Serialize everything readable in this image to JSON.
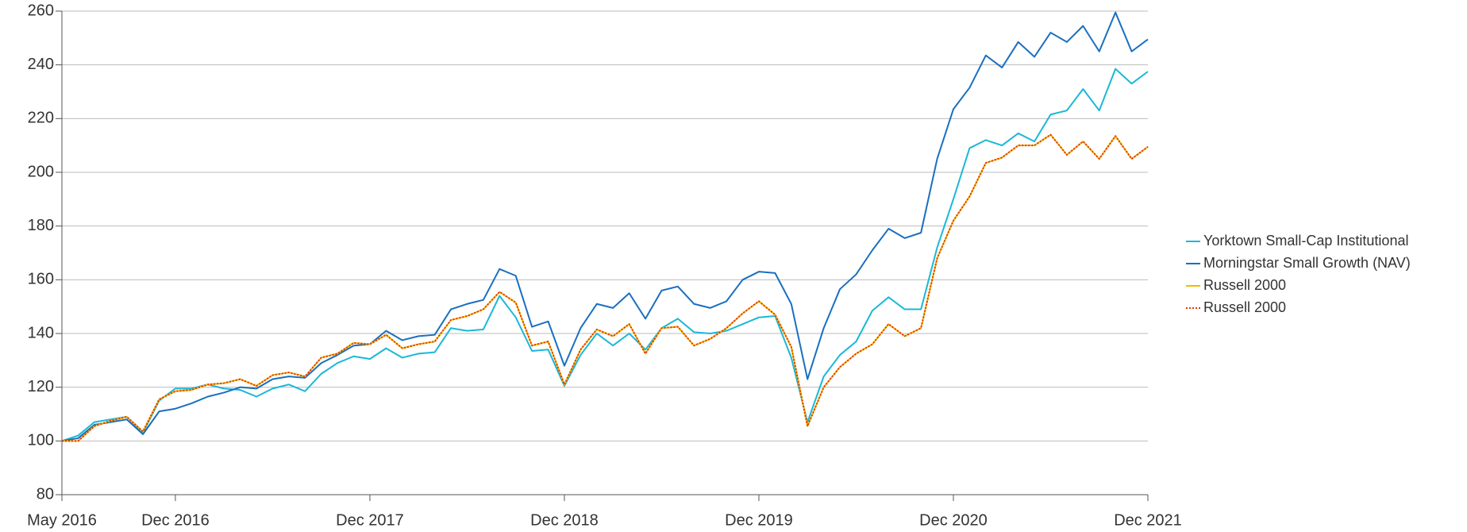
{
  "chart_data": {
    "type": "line",
    "categories": [
      "May 2016",
      null,
      null,
      null,
      null,
      null,
      null,
      "Dec 2016",
      null,
      null,
      null,
      null,
      null,
      null,
      null,
      null,
      null,
      null,
      null,
      "Dec 2017",
      null,
      null,
      null,
      null,
      null,
      null,
      null,
      null,
      null,
      null,
      null,
      "Dec 2018",
      null,
      null,
      null,
      null,
      null,
      null,
      null,
      null,
      null,
      null,
      null,
      "Dec 2019",
      null,
      null,
      null,
      null,
      null,
      null,
      null,
      null,
      null,
      null,
      null,
      "Dec 2020",
      null,
      null,
      null,
      null,
      null,
      null,
      null,
      null,
      null,
      null,
      null,
      "Dec 2021"
    ],
    "series": [
      {
        "name": "Yorktown Small-Cap Institutional",
        "color": "#1ab8d8",
        "style": "solid",
        "values": [
          100,
          102,
          107,
          108,
          109,
          103,
          115,
          119.5,
          119.5,
          121,
          119.5,
          119,
          116.5,
          119.5,
          121,
          118.5,
          125,
          129,
          131.5,
          130.5,
          134.5,
          131,
          132.5,
          133,
          142,
          141,
          141.5,
          154,
          146,
          133.5,
          134,
          120.5,
          132,
          140,
          135.5,
          140,
          134,
          142,
          145.5,
          140.5,
          140,
          141,
          143.5,
          146,
          146.5,
          131,
          107,
          124,
          132,
          137,
          148.5,
          153.5,
          149,
          149,
          172,
          190,
          209,
          212,
          210,
          214.5,
          211.5,
          221.5,
          223,
          231,
          223,
          238.5,
          233,
          237.5
        ]
      },
      {
        "name": "Morningstar Small Growth (NAV)",
        "color": "#1a6fc0",
        "style": "solid",
        "values": [
          100,
          101,
          106,
          107,
          108,
          102.5,
          111,
          112,
          114,
          116.5,
          118,
          120,
          119.5,
          123,
          124,
          123.5,
          129,
          132,
          135.5,
          136,
          141,
          137.5,
          139,
          139.5,
          149,
          151,
          152.5,
          164,
          161.5,
          142.5,
          144.5,
          128,
          142,
          151,
          149.5,
          155,
          145.5,
          156,
          157.5,
          151,
          149.5,
          152,
          160,
          163,
          162.5,
          151,
          123,
          142,
          156.5,
          162,
          171,
          179,
          175.5,
          177.5,
          205,
          223.5,
          231.5,
          243.5,
          239,
          248.5,
          243,
          252,
          248.5,
          254.5,
          245,
          259.5,
          245,
          249.5
        ]
      },
      {
        "name": "Russell 2000",
        "color": "#f5b800",
        "style": "solid",
        "values": [
          100,
          100,
          105.5,
          107.5,
          109,
          103.5,
          115.5,
          118.5,
          119,
          121,
          121.5,
          123,
          120.5,
          124.5,
          125.5,
          124,
          131,
          132.5,
          136.5,
          136,
          139.5,
          134.5,
          136,
          137,
          145,
          146.5,
          149,
          155.5,
          151.5,
          135.5,
          137,
          121,
          134,
          141.5,
          139,
          143.5,
          132.5,
          142,
          142.5,
          135.5,
          138,
          142,
          147.5,
          152,
          147,
          135,
          105.5,
          120,
          127.5,
          132.5,
          136,
          143.5,
          139,
          142,
          168,
          182,
          191,
          203.5,
          205.5,
          210,
          210,
          214,
          206.5,
          211.5,
          205,
          213.5,
          205,
          209.5
        ]
      },
      {
        "name": "Russell 2000",
        "color": "#e03a00",
        "style": "dotted",
        "values": [
          100,
          100,
          105.5,
          107.5,
          109,
          103.5,
          115.5,
          118.5,
          119,
          121,
          121.5,
          123,
          120.5,
          124.5,
          125.5,
          124,
          131,
          132.5,
          136.5,
          136,
          139.5,
          134.5,
          136,
          137,
          145,
          146.5,
          149,
          155.5,
          151.5,
          135.5,
          137,
          121,
          134,
          141.5,
          139,
          143.5,
          132.5,
          142,
          142.5,
          135.5,
          138,
          142,
          147.5,
          152,
          147,
          135,
          105.5,
          120,
          127.5,
          132.5,
          136,
          143.5,
          139,
          142,
          168,
          182,
          191,
          203.5,
          205.5,
          210,
          210,
          214,
          206.5,
          211.5,
          205,
          213.5,
          205,
          209.5
        ]
      }
    ],
    "ylim": [
      80,
      260
    ],
    "yticks": [
      80,
      100,
      120,
      140,
      160,
      180,
      200,
      220,
      240,
      260
    ],
    "grid": true,
    "legend": "right"
  }
}
